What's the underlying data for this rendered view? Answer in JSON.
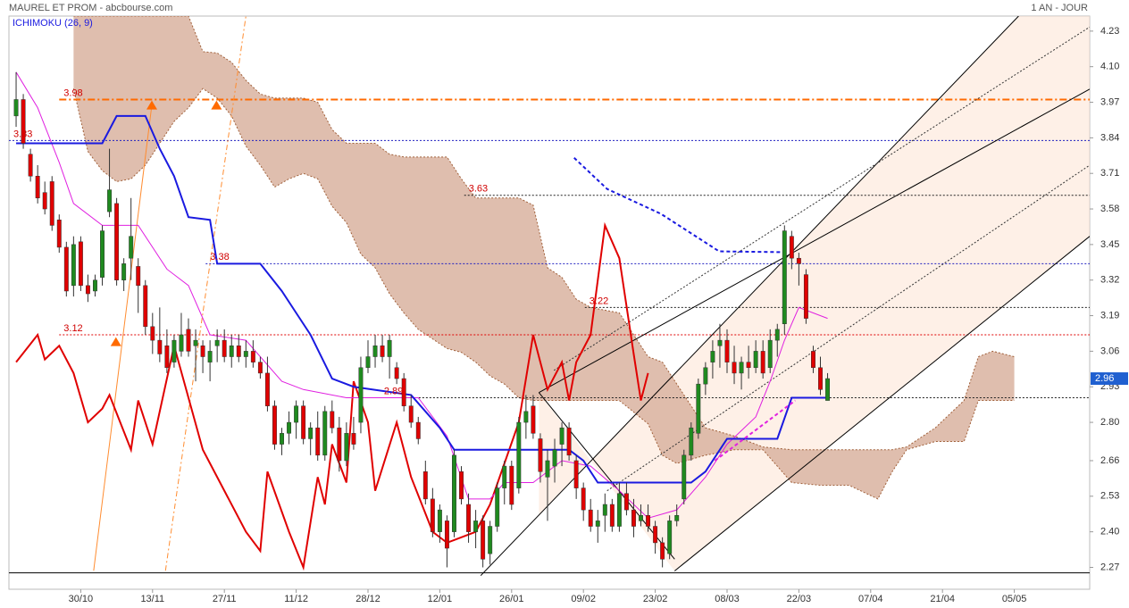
{
  "header": {
    "title": "MAUREL ET PROM - abcbourse.com",
    "period": "1 AN - JOUR",
    "indicator": "ICHIMOKU (26, 9)"
  },
  "chart_data": {
    "type": "candlestick",
    "xlim": [
      -1,
      149.5
    ],
    "ylim": [
      2.19,
      4.285
    ],
    "xticks": [
      {
        "value": 9,
        "label": "30/10"
      },
      {
        "value": 19,
        "label": "13/11"
      },
      {
        "value": 29,
        "label": "27/11"
      },
      {
        "value": 39,
        "label": "11/12"
      },
      {
        "value": 49,
        "label": "28/12"
      },
      {
        "value": 59,
        "label": "12/01"
      },
      {
        "value": 69,
        "label": "26/01"
      },
      {
        "value": 79,
        "label": "09/02"
      },
      {
        "value": 89,
        "label": "23/02"
      },
      {
        "value": 99,
        "label": "08/03"
      },
      {
        "value": 109,
        "label": "22/03"
      },
      {
        "value": 119,
        "label": "07/04"
      },
      {
        "value": 129,
        "label": "21/04"
      },
      {
        "value": 139,
        "label": "05/05"
      }
    ],
    "yticks": [
      4.23,
      {
        "value": 4.1,
        "label": "4.10"
      },
      3.97,
      3.84,
      3.71,
      3.58,
      3.45,
      3.32,
      3.19,
      3.06,
      2.93,
      {
        "value": 2.8,
        "label": "2.80"
      },
      2.66,
      2.53,
      {
        "value": 2.4,
        "label": "2.40"
      },
      2.27
    ],
    "up_color": "#1f8a1f",
    "down_color": "#e00000",
    "candles": [
      [
        3.92,
        4.08,
        3.88,
        3.98
      ],
      [
        3.98,
        4.0,
        3.8,
        3.82
      ],
      [
        3.78,
        3.8,
        3.68,
        3.7
      ],
      [
        3.7,
        3.74,
        3.6,
        3.62
      ],
      [
        3.64,
        3.68,
        3.56,
        3.58
      ],
      [
        3.68,
        3.7,
        3.5,
        3.52
      ],
      [
        3.54,
        3.56,
        3.42,
        3.44
      ],
      [
        3.44,
        3.46,
        3.26,
        3.28
      ],
      [
        3.3,
        3.48,
        3.26,
        3.45
      ],
      [
        3.46,
        3.48,
        3.28,
        3.3
      ],
      [
        3.3,
        3.34,
        3.24,
        3.27
      ],
      [
        3.28,
        3.34,
        3.26,
        3.32
      ],
      [
        3.33,
        3.52,
        3.3,
        3.5
      ],
      [
        3.57,
        3.8,
        3.55,
        3.65
      ],
      [
        3.6,
        3.62,
        3.3,
        3.32
      ],
      [
        3.32,
        3.4,
        3.28,
        3.38
      ],
      [
        3.4,
        3.62,
        3.32,
        3.48
      ],
      [
        3.37,
        3.4,
        3.2,
        3.3
      ],
      [
        3.3,
        3.32,
        3.12,
        3.15
      ],
      [
        3.15,
        3.2,
        3.05,
        3.1
      ],
      [
        3.1,
        3.22,
        3.02,
        3.05
      ],
      [
        3.08,
        3.14,
        2.98,
        3.0
      ],
      [
        3.02,
        3.12,
        3.0,
        3.1
      ],
      [
        3.06,
        3.2,
        3.04,
        3.12
      ],
      [
        3.14,
        3.18,
        3.04,
        3.06
      ],
      [
        3.08,
        3.14,
        2.95,
        3.1
      ],
      [
        3.08,
        3.1,
        2.98,
        3.04
      ],
      [
        3.02,
        3.1,
        2.95,
        3.06
      ],
      [
        3.08,
        3.14,
        3.02,
        3.1
      ],
      [
        3.1,
        3.14,
        3.02,
        3.04
      ],
      [
        3.04,
        3.12,
        3.0,
        3.08
      ],
      [
        3.08,
        3.12,
        3.02,
        3.04
      ],
      [
        3.04,
        3.1,
        3.0,
        3.06
      ],
      [
        3.06,
        3.1,
        3.0,
        3.02
      ],
      [
        3.02,
        3.04,
        2.96,
        2.98
      ],
      [
        2.98,
        3.04,
        2.84,
        2.86
      ],
      [
        2.86,
        2.88,
        2.7,
        2.72
      ],
      [
        2.72,
        2.78,
        2.68,
        2.76
      ],
      [
        2.76,
        2.84,
        2.72,
        2.8
      ],
      [
        2.8,
        2.88,
        2.74,
        2.86
      ],
      [
        2.86,
        2.88,
        2.72,
        2.74
      ],
      [
        2.74,
        2.8,
        2.68,
        2.78
      ],
      [
        2.78,
        2.84,
        2.66,
        2.68
      ],
      [
        2.68,
        2.86,
        2.66,
        2.84
      ],
      [
        2.84,
        2.88,
        2.76,
        2.78
      ],
      [
        2.78,
        2.82,
        2.62,
        2.66
      ],
      [
        2.66,
        2.8,
        2.64,
        2.76
      ],
      [
        2.76,
        2.82,
        2.7,
        2.72
      ],
      [
        2.8,
        3.04,
        2.76,
        3.0
      ],
      [
        3.0,
        3.1,
        2.98,
        3.04
      ],
      [
        3.04,
        3.12,
        3.0,
        3.08
      ],
      [
        3.08,
        3.12,
        3.02,
        3.04
      ],
      [
        3.04,
        3.12,
        2.96,
        3.1
      ],
      [
        3.0,
        3.02,
        2.94,
        2.96
      ],
      [
        2.96,
        2.98,
        2.84,
        2.86
      ],
      [
        2.86,
        2.9,
        2.78,
        2.8
      ],
      [
        2.8,
        2.82,
        2.72,
        2.74
      ],
      [
        2.62,
        2.66,
        2.5,
        2.52
      ],
      [
        2.52,
        2.56,
        2.38,
        2.4
      ],
      [
        2.4,
        2.5,
        2.36,
        2.48
      ],
      [
        2.44,
        2.46,
        2.27,
        2.34
      ],
      [
        2.4,
        2.7,
        2.38,
        2.68
      ],
      [
        2.62,
        2.64,
        2.5,
        2.52
      ],
      [
        2.5,
        2.54,
        2.36,
        2.4
      ],
      [
        2.4,
        2.48,
        2.34,
        2.44
      ],
      [
        2.44,
        2.46,
        2.27,
        2.3
      ],
      [
        2.32,
        2.44,
        2.28,
        2.42
      ],
      [
        2.42,
        2.58,
        2.4,
        2.56
      ],
      [
        2.56,
        2.66,
        2.5,
        2.64
      ],
      [
        2.64,
        2.66,
        2.48,
        2.5
      ],
      [
        2.56,
        2.82,
        2.54,
        2.8
      ],
      [
        2.8,
        2.9,
        2.74,
        2.84
      ],
      [
        2.86,
        2.9,
        2.74,
        2.76
      ],
      [
        2.74,
        2.76,
        2.58,
        2.62
      ],
      [
        2.6,
        2.7,
        2.44,
        2.66
      ],
      [
        2.64,
        2.74,
        2.58,
        2.7
      ],
      [
        2.72,
        2.8,
        2.64,
        2.78
      ],
      [
        2.78,
        2.8,
        2.66,
        2.68
      ],
      [
        2.66,
        2.68,
        2.52,
        2.56
      ],
      [
        2.56,
        2.58,
        2.44,
        2.48
      ],
      [
        2.48,
        2.52,
        2.4,
        2.42
      ],
      [
        2.42,
        2.48,
        2.36,
        2.44
      ],
      [
        2.46,
        2.54,
        2.4,
        2.5
      ],
      [
        2.5,
        2.52,
        2.4,
        2.42
      ],
      [
        2.42,
        2.58,
        2.4,
        2.54
      ],
      [
        2.54,
        2.58,
        2.46,
        2.48
      ],
      [
        2.48,
        2.52,
        2.38,
        2.42
      ],
      [
        2.44,
        2.5,
        2.42,
        2.46
      ],
      [
        2.46,
        2.5,
        2.4,
        2.42
      ],
      [
        2.42,
        2.44,
        2.32,
        2.36
      ],
      [
        2.36,
        2.38,
        2.27,
        2.3
      ],
      [
        2.32,
        2.46,
        2.3,
        2.44
      ],
      [
        2.44,
        2.5,
        2.42,
        2.46
      ],
      [
        2.52,
        2.7,
        2.5,
        2.68
      ],
      [
        2.68,
        2.8,
        2.66,
        2.78
      ],
      [
        2.76,
        2.96,
        2.74,
        2.94
      ],
      [
        2.94,
        3.02,
        2.9,
        3.0
      ],
      [
        3.02,
        3.1,
        2.96,
        3.06
      ],
      [
        3.08,
        3.16,
        3.0,
        3.1
      ],
      [
        3.1,
        3.14,
        2.98,
        3.02
      ],
      [
        3.02,
        3.08,
        2.94,
        2.98
      ],
      [
        2.98,
        3.04,
        2.92,
        3.02
      ],
      [
        3.02,
        3.08,
        2.96,
        3.0
      ],
      [
        3.0,
        3.1,
        2.98,
        3.06
      ],
      [
        3.06,
        3.1,
        2.96,
        2.98
      ],
      [
        3.0,
        3.14,
        2.98,
        3.1
      ],
      [
        3.1,
        3.16,
        3.04,
        3.14
      ],
      [
        3.16,
        3.52,
        3.12,
        3.5
      ],
      [
        3.48,
        3.5,
        3.36,
        3.4
      ],
      [
        3.4,
        3.42,
        3.3,
        3.38
      ],
      [
        3.34,
        3.36,
        3.16,
        3.18
      ],
      [
        3.06,
        3.08,
        2.98,
        3.0
      ],
      [
        3.0,
        3.04,
        2.9,
        2.92
      ],
      [
        2.88,
        2.98,
        2.88,
        2.96
      ]
    ],
    "cloud": {
      "color": "#d9b3a0",
      "edge": "#a0603a",
      "x": [
        8,
        10,
        12,
        14,
        16,
        18,
        20,
        22,
        24,
        26,
        28,
        30,
        32,
        34,
        36,
        38,
        40,
        42,
        44,
        46,
        48,
        50,
        52,
        54,
        56,
        58,
        60,
        62,
        64,
        66,
        68,
        70,
        72,
        74,
        76,
        78,
        80,
        84,
        88,
        90,
        92,
        94,
        96,
        100,
        104,
        108,
        112,
        116,
        120,
        122,
        124,
        128,
        132,
        134,
        136,
        139
      ],
      "span_a": [
        4.285,
        4.285,
        4.285,
        4.285,
        4.285,
        4.285,
        4.285,
        4.285,
        4.285,
        4.155,
        4.15,
        4.116,
        4.05,
        4.0,
        3.985,
        3.985,
        3.985,
        3.97,
        3.87,
        3.82,
        3.82,
        3.82,
        3.78,
        3.77,
        3.77,
        3.77,
        3.77,
        3.69,
        3.62,
        3.62,
        3.62,
        3.62,
        3.594,
        3.365,
        3.33,
        3.25,
        3.22,
        3.2,
        3.04,
        3.02,
        2.94,
        2.86,
        2.78,
        2.75,
        2.71,
        2.7,
        2.7,
        2.7,
        2.7,
        2.7,
        2.71,
        2.78,
        2.88,
        3.04,
        3.06,
        3.04
      ],
      "span_b": [
        4.02,
        3.79,
        3.72,
        3.68,
        3.69,
        3.74,
        3.82,
        3.9,
        3.95,
        4.02,
        3.985,
        3.92,
        3.81,
        3.74,
        3.66,
        3.69,
        3.71,
        3.69,
        3.59,
        3.53,
        3.415,
        3.365,
        3.27,
        3.2,
        3.14,
        3.105,
        3.07,
        3.056,
        3.02,
        2.97,
        2.94,
        2.89,
        2.88,
        2.88,
        2.88,
        2.88,
        2.88,
        2.88,
        2.795,
        2.68,
        2.65,
        2.665,
        2.68,
        2.7,
        2.7,
        2.58,
        2.57,
        2.57,
        2.52,
        2.62,
        2.7,
        2.73,
        2.73,
        2.88,
        2.88,
        2.88
      ]
    },
    "lines": [
      {
        "color": "#e00000",
        "width": 2,
        "x": [
          0,
          3,
          4,
          6,
          8,
          10,
          12,
          13,
          16,
          17,
          19,
          22,
          26,
          28,
          32,
          34,
          35,
          38,
          40,
          42,
          43,
          44,
          46,
          47,
          49,
          50,
          53,
          55,
          58,
          60,
          64,
          66,
          70,
          72,
          74,
          76,
          77,
          78,
          80,
          82,
          84,
          86,
          87,
          88
        ],
        "values": [
          3.02,
          3.12,
          3.03,
          3.08,
          2.98,
          2.8,
          2.85,
          2.9,
          2.7,
          2.88,
          2.72,
          3.08,
          2.7,
          2.6,
          2.4,
          2.33,
          2.62,
          2.4,
          2.27,
          2.6,
          2.5,
          2.72,
          2.58,
          2.95,
          2.8,
          2.55,
          2.8,
          2.6,
          2.4,
          2.36,
          2.4,
          2.5,
          2.8,
          3.12,
          2.92,
          3.02,
          2.88,
          3.02,
          3.12,
          3.52,
          3.4,
          3.05,
          2.88,
          2.98
        ]
      },
      {
        "color": "#e020e0",
        "width": 1,
        "x": [
          0,
          3,
          6,
          8,
          12,
          17,
          21,
          24,
          27,
          32,
          37,
          40,
          46,
          56,
          60,
          63,
          66,
          68,
          72,
          76,
          80,
          84,
          88,
          92,
          96,
          99,
          103,
          105,
          107,
          109,
          113
        ],
        "values": [
          4.08,
          3.95,
          3.75,
          3.6,
          3.52,
          3.52,
          3.36,
          3.3,
          3.12,
          3.1,
          2.95,
          2.92,
          2.89,
          2.89,
          2.75,
          2.52,
          2.52,
          2.58,
          2.58,
          2.66,
          2.64,
          2.55,
          2.45,
          2.48,
          2.6,
          2.72,
          2.82,
          2.95,
          3.1,
          3.22,
          3.18
        ]
      },
      {
        "color": "#1a1ae0",
        "width": 2,
        "x": [
          0,
          12,
          14,
          18,
          20,
          22,
          24,
          27,
          28,
          34,
          37,
          39,
          41,
          44,
          47,
          55,
          59,
          61,
          77,
          79,
          81,
          94,
          96,
          99,
          106,
          108,
          113
        ],
        "values": [
          3.82,
          3.82,
          3.92,
          3.92,
          3.8,
          3.7,
          3.55,
          3.54,
          3.38,
          3.38,
          3.28,
          3.2,
          3.12,
          2.96,
          2.93,
          2.9,
          2.78,
          2.7,
          2.7,
          2.66,
          2.58,
          2.58,
          2.62,
          2.74,
          2.74,
          2.89,
          2.89
        ]
      },
      {
        "color": "#1a1ae0",
        "width": 2,
        "dash": "4,3",
        "x": [
          77.7,
          82.3,
          89.8,
          97.9,
          107.2
        ],
        "values": [
          3.767,
          3.653,
          3.562,
          3.425,
          3.422
        ]
      },
      {
        "color": "#e020e0",
        "width": 2,
        "dash": "4,3",
        "x": [
          97.3,
          108.5
        ],
        "values": [
          2.66,
          2.88
        ]
      }
    ],
    "levels": [
      {
        "value": 3.98,
        "from": 6,
        "color": "#ff6a00",
        "dash": "8,3,2,3"
      },
      {
        "value": 3.83,
        "from": -1,
        "color": "#2020c0",
        "dash": "2,2"
      },
      {
        "value": 3.63,
        "from": 62.4,
        "color": "#222222",
        "dash": "2,2"
      },
      {
        "value": 3.38,
        "from": 26.4,
        "color": "#2020c0",
        "dash": "2,2"
      },
      {
        "value": 3.22,
        "from": 79.2,
        "color": "#222222",
        "dash": "2,2"
      },
      {
        "value": 3.12,
        "from": 6,
        "color": "#e00000",
        "dash": "2,2"
      },
      {
        "value": 2.89,
        "from": 50.6,
        "color": "#222222",
        "dash": "2,2"
      }
    ],
    "support": {
      "value": 2.25,
      "color": "#000000"
    },
    "trendlines": [
      {
        "x": [
          64.7,
          139.6
        ],
        "values": [
          2.24,
          4.285
        ],
        "color": "#000000"
      },
      {
        "x": [
          72.8,
          149.5
        ],
        "values": [
          2.909,
          4.018
        ],
        "color": "#000000"
      },
      {
        "x": [
          91.7,
          149.5
        ],
        "values": [
          2.257,
          3.48
        ],
        "color": "#000000"
      },
      {
        "x": [
          72.8,
          91.7
        ],
        "values": [
          2.909,
          2.3
        ],
        "color": "#000000"
      },
      {
        "x": [
          74.9,
          149.5
        ],
        "values": [
          2.99,
          4.245
        ],
        "color": "#333333",
        "dash": "2,2"
      },
      {
        "x": [
          82.3,
          149.5
        ],
        "values": [
          2.55,
          3.74
        ],
        "color": "#333333",
        "dash": "2,2"
      },
      {
        "x": [
          10.8,
          18.9
        ],
        "values": [
          2.258,
          3.96
        ],
        "color": "#ff8c30"
      },
      {
        "x": [
          20.8,
          32
        ],
        "values": [
          2.258,
          4.285
        ],
        "color": "#ff8c30",
        "dash": "6,3,2,3"
      }
    ],
    "markers": {
      "color": "#ff6a00",
      "x": [
        13.9,
        18.9,
        27.9
      ],
      "values": [
        3.095,
        3.96,
        3.96
      ]
    },
    "last": {
      "value": 2.96,
      "color": "#2060d0"
    }
  }
}
